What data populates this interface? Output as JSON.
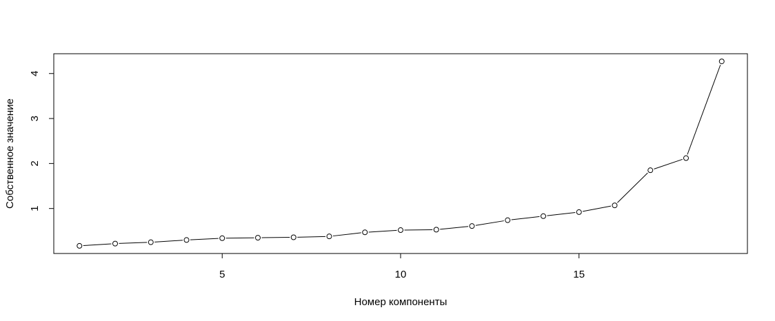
{
  "chart_data": {
    "type": "line",
    "title": "",
    "xlabel": "Номер компоненты",
    "ylabel": "Собственное значение",
    "x": [
      1,
      2,
      3,
      4,
      5,
      6,
      7,
      8,
      9,
      10,
      11,
      12,
      13,
      14,
      15,
      16,
      17,
      18,
      19
    ],
    "series": [
      {
        "values": [
          0.17,
          0.22,
          0.25,
          0.3,
          0.34,
          0.35,
          0.36,
          0.38,
          0.47,
          0.52,
          0.53,
          0.61,
          0.74,
          0.83,
          0.92,
          1.07,
          1.85,
          2.12,
          4.27
        ]
      }
    ],
    "xticks": [
      5,
      10,
      15
    ],
    "xtick_labels": [
      "5",
      "10",
      "15"
    ],
    "yticks": [
      1,
      2,
      3,
      4
    ],
    "ytick_labels": [
      "1",
      "2",
      "3",
      "4"
    ],
    "xlim": [
      0.28,
      19.72
    ],
    "ylim": [
      -0.0,
      4.44
    ],
    "grid": false,
    "legend": "none",
    "marker": "open-circle",
    "line_color": "#000000"
  }
}
